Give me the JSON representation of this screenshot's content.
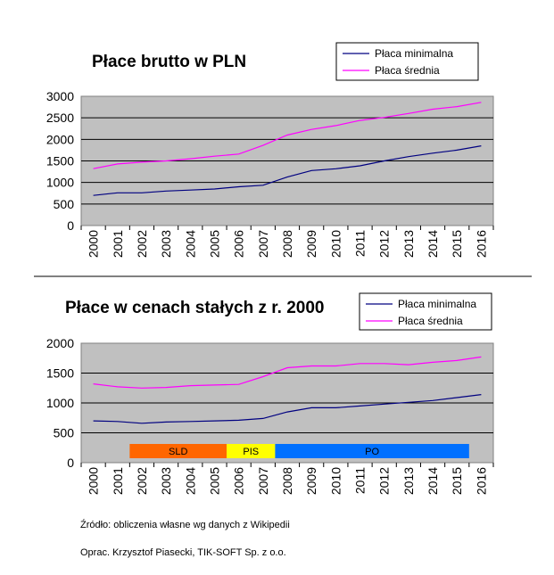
{
  "chart_data": [
    {
      "type": "line",
      "title": "Płace brutto w PLN",
      "x": [
        "2000",
        "2001",
        "2002",
        "2003",
        "2004",
        "2005",
        "2006",
        "2007",
        "2008",
        "2009",
        "2010",
        "2011",
        "2012",
        "2013",
        "2014",
        "2015",
        "2016"
      ],
      "ylim": [
        0,
        3000
      ],
      "yticks": [
        0,
        500,
        1000,
        1500,
        2000,
        2500,
        3000
      ],
      "grid": true,
      "legend_position": "top-right",
      "series": [
        {
          "name": "Płaca minimalna",
          "color": "#000080",
          "values": [
            700,
            760,
            760,
            800,
            824,
            849,
            899,
            936,
            1126,
            1276,
            1317,
            1386,
            1500,
            1600,
            1680,
            1750,
            1850
          ]
        },
        {
          "name": "Płaca średnia",
          "color": "#ff00ff",
          "values": [
            1320,
            1430,
            1470,
            1500,
            1550,
            1610,
            1660,
            1860,
            2100,
            2230,
            2320,
            2440,
            2510,
            2600,
            2700,
            2760,
            2860
          ]
        }
      ]
    },
    {
      "type": "line",
      "title": "Płace w cenach stałych z r. 2000",
      "x": [
        "2000",
        "2001",
        "2002",
        "2003",
        "2004",
        "2005",
        "2006",
        "2007",
        "2008",
        "2009",
        "2010",
        "2011",
        "2012",
        "2013",
        "2014",
        "2015",
        "2016"
      ],
      "ylim": [
        0,
        2000
      ],
      "yticks": [
        0,
        500,
        1000,
        1500,
        2000
      ],
      "grid": true,
      "legend_position": "top-right",
      "series": [
        {
          "name": "Płaca minimalna",
          "color": "#000080",
          "values": [
            700,
            690,
            660,
            680,
            690,
            700,
            710,
            740,
            850,
            920,
            920,
            950,
            980,
            1010,
            1040,
            1090,
            1140
          ]
        },
        {
          "name": "Płaca średnia",
          "color": "#ff00ff",
          "values": [
            1320,
            1270,
            1250,
            1260,
            1290,
            1300,
            1310,
            1440,
            1590,
            1620,
            1620,
            1660,
            1660,
            1640,
            1680,
            1710,
            1770
          ]
        }
      ],
      "annotations": [
        {
          "label": "SLD",
          "from": "2001.5",
          "to": "2005.5",
          "color": "#ff6600"
        },
        {
          "label": "PIS",
          "from": "2005.5",
          "to": "2007.5",
          "color": "#ffff00"
        },
        {
          "label": "PO",
          "from": "2007.5",
          "to": "2015.5",
          "color": "#0070ff"
        }
      ]
    }
  ],
  "footer": {
    "source": "Źródło: obliczenia własne wg danych z Wikipedii",
    "author": "Oprac. Krzysztof Piasecki, TIK-SOFT Sp. z o.o."
  }
}
